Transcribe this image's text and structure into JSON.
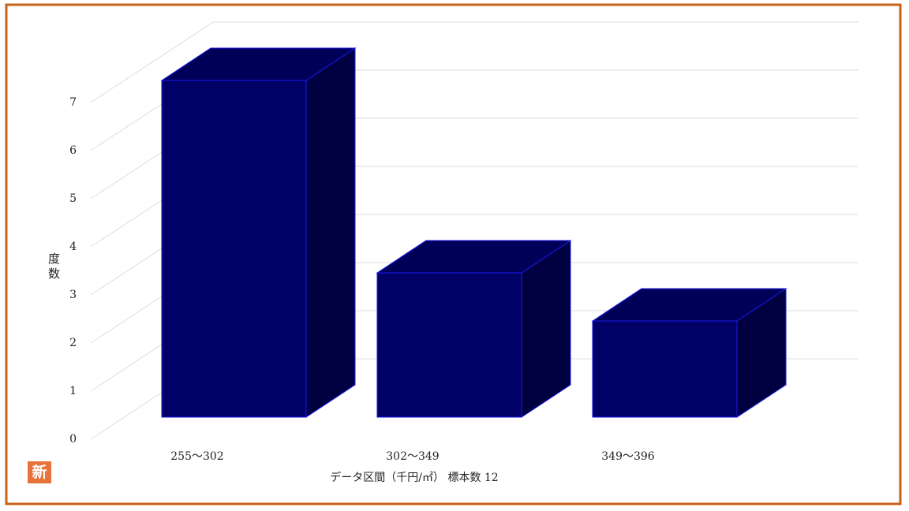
{
  "chart_data": {
    "type": "bar3d",
    "x_label": "データ区間（千円/㎡） 標本数 12",
    "y_label": "度数",
    "categories": [
      "255～302",
      "302～349",
      "349～396"
    ],
    "values": [
      7,
      3,
      2
    ],
    "color": "#000066",
    "ylim": [
      0,
      7
    ],
    "yticks": [
      0,
      1,
      2,
      3,
      4,
      5,
      6,
      7
    ],
    "grid": true
  },
  "badge": "新"
}
